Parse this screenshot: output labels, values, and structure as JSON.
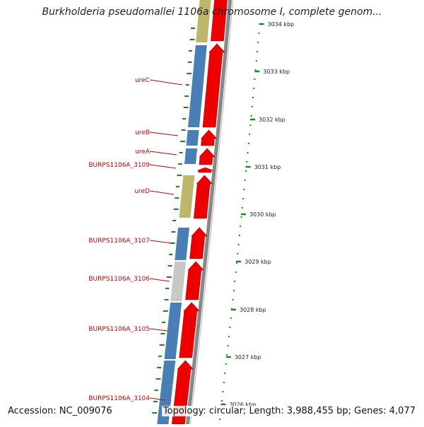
{
  "header": {
    "title": "Burkholderia pseudomallei 1106a chromosome I, complete genom..."
  },
  "footer": {
    "accession": "Accession: NC_009076",
    "summary": "Topology: circular; Length: 3,988,455 bp; Genes: 4,077"
  },
  "scale": {
    "tick_labels": [
      "3034 kbp",
      "3033 kbp",
      "3032 kbp",
      "3031 kbp",
      "3030 kbp",
      "3029 kbp",
      "3028 kbp",
      "3027 kbp",
      "3026 kbp"
    ]
  },
  "genes": [
    {
      "label": "ureC",
      "color": "#4a7fb5"
    },
    {
      "label": "ureB",
      "color": "#4a7fb5"
    },
    {
      "label": "ureA",
      "color": "#4a7fb5"
    },
    {
      "label": "BURPS1106A_3109",
      "color": "#4a7fb5"
    },
    {
      "label": "ureD",
      "color": "#bdb76b"
    },
    {
      "label": "BURPS1106A_3107",
      "color": "#4a7fb5"
    },
    {
      "label": "BURPS1106A_3106",
      "color": "#c8c8c8"
    },
    {
      "label": "BURPS1106A_3105",
      "color": "#4a7fb5"
    },
    {
      "label": "BURPS1106A_3104",
      "color": "#4a7fb5"
    }
  ],
  "colors": {
    "cds": "#ee0000",
    "backbone": "#888888",
    "gene_label": "#cc0000",
    "gc_skew": "#1a8a1a"
  }
}
